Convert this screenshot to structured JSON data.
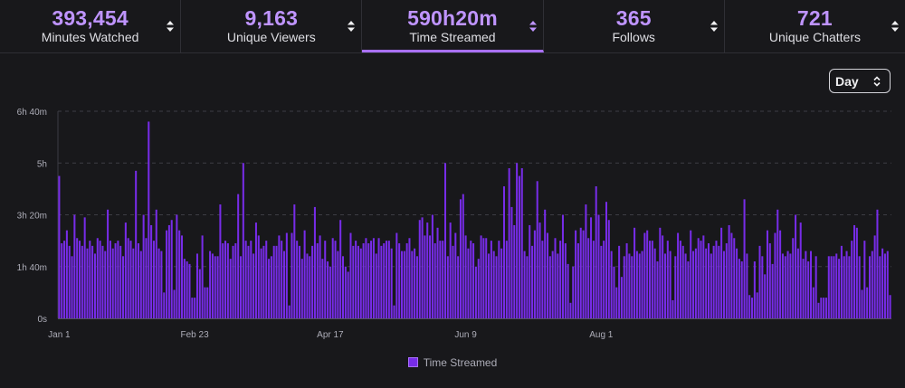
{
  "stats": [
    {
      "value": "393,454",
      "label": "Minutes Watched",
      "active": false
    },
    {
      "value": "9,163",
      "label": "Unique Viewers",
      "active": false
    },
    {
      "value": "590h20m",
      "label": "Time Streamed",
      "active": true
    },
    {
      "value": "365",
      "label": "Follows",
      "active": false
    },
    {
      "value": "721",
      "label": "Unique Chatters",
      "active": false
    }
  ],
  "period_select": {
    "value": "Day"
  },
  "colors": {
    "accent": "#a970ff",
    "bar": "#772ce8",
    "value_text": "#bf94ff"
  },
  "chart_data": {
    "type": "bar",
    "legend": [
      "Time Streamed"
    ],
    "legend_position": "bottom",
    "grid": true,
    "y_unit": "minutes",
    "ylim": [
      0,
      400
    ],
    "y_ticks": [
      {
        "value": 0,
        "label": "0s"
      },
      {
        "value": 100,
        "label": "1h 40m"
      },
      {
        "value": 200,
        "label": "3h 20m"
      },
      {
        "value": 300,
        "label": "5h"
      },
      {
        "value": 400,
        "label": "6h 40m"
      }
    ],
    "x_ticks": [
      {
        "index": 0,
        "label": "Jan 1"
      },
      {
        "index": 53,
        "label": "Feb 23"
      },
      {
        "index": 106,
        "label": "Apr 17"
      },
      {
        "index": 159,
        "label": "Jun 9"
      },
      {
        "index": 212,
        "label": "Aug 1"
      }
    ],
    "series": [
      {
        "name": "Time Streamed",
        "values": [
          275,
          145,
          150,
          170,
          140,
          120,
          200,
          155,
          150,
          140,
          195,
          135,
          150,
          140,
          125,
          155,
          150,
          140,
          130,
          210,
          150,
          135,
          145,
          150,
          140,
          120,
          185,
          155,
          150,
          135,
          285,
          145,
          130,
          200,
          155,
          380,
          180,
          150,
          210,
          135,
          130,
          50,
          170,
          180,
          190,
          55,
          200,
          170,
          160,
          115,
          110,
          105,
          40,
          40,
          125,
          95,
          160,
          60,
          60,
          130,
          125,
          120,
          120,
          220,
          145,
          150,
          145,
          115,
          140,
          145,
          240,
          120,
          300,
          150,
          140,
          150,
          125,
          185,
          160,
          135,
          140,
          150,
          115,
          120,
          140,
          140,
          160,
          150,
          130,
          165,
          25,
          165,
          220,
          150,
          140,
          115,
          170,
          125,
          120,
          140,
          215,
          145,
          160,
          115,
          150,
          110,
          100,
          155,
          150,
          130,
          190,
          120,
          100,
          90,
          165,
          140,
          150,
          140,
          135,
          145,
          155,
          145,
          150,
          155,
          125,
          155,
          140,
          145,
          150,
          150,
          135,
          25,
          165,
          145,
          130,
          130,
          145,
          155,
          130,
          135,
          120,
          190,
          195,
          160,
          185,
          160,
          200,
          145,
          175,
          150,
          150,
          300,
          120,
          185,
          140,
          165,
          120,
          230,
          240,
          160,
          135,
          150,
          145,
          100,
          115,
          160,
          155,
          155,
          125,
          150,
          130,
          120,
          150,
          135,
          255,
          150,
          290,
          215,
          180,
          300,
          275,
          290,
          130,
          120,
          180,
          140,
          170,
          265,
          185,
          150,
          210,
          165,
          120,
          130,
          155,
          125,
          150,
          200,
          145,
          105,
          30,
          100,
          170,
          145,
          175,
          170,
          220,
          155,
          195,
          150,
          255,
          200,
          140,
          150,
          225,
          190,
          130,
          100,
          60,
          140,
          80,
          120,
          145,
          125,
          120,
          175,
          130,
          125,
          130,
          165,
          170,
          150,
          150,
          135,
          110,
          175,
          160,
          125,
          150,
          130,
          35,
          120,
          165,
          150,
          140,
          125,
          110,
          170,
          130,
          135,
          155,
          150,
          160,
          135,
          145,
          125,
          140,
          150,
          140,
          175,
          130,
          145,
          180,
          165,
          155,
          135,
          115,
          110,
          230,
          125,
          45,
          40,
          110,
          50,
          140,
          120,
          85,
          170,
          145,
          105,
          165,
          210,
          170,
          125,
          120,
          130,
          125,
          155,
          200,
          135,
          185,
          115,
          130,
          110,
          130,
          60,
          120,
          30,
          40,
          40,
          40,
          120,
          120,
          120,
          125,
          115,
          140,
          120,
          130,
          120,
          150,
          180,
          175,
          120,
          55,
          150,
          60,
          120,
          130,
          160,
          210,
          120,
          135,
          125,
          130,
          45
        ]
      }
    ]
  }
}
